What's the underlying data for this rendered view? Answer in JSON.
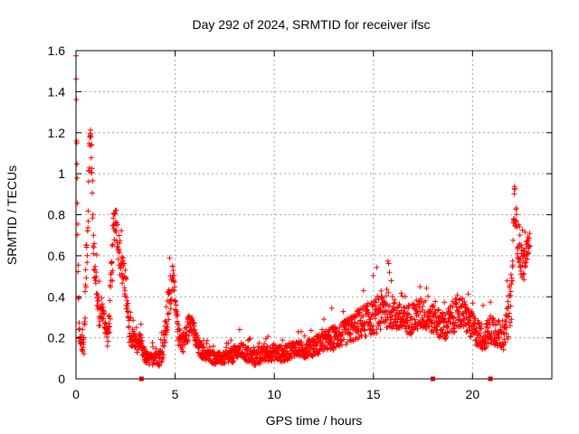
{
  "chart_data": {
    "type": "scatter",
    "title": "Day 292 of 2024, SRMTID for receiver ifsc",
    "xlabel": "GPS time / hours",
    "ylabel": "SRMTID / TECUs",
    "xlim": [
      0,
      24
    ],
    "ylim": [
      0,
      1.6
    ],
    "x_ticks": [
      0,
      5,
      10,
      15,
      20
    ],
    "x_tick_labels": [
      "0",
      "5",
      "10",
      "15",
      "20"
    ],
    "y_ticks": [
      0,
      0.2,
      0.4,
      0.6,
      0.8,
      1,
      1.2,
      1.4,
      1.6
    ],
    "y_tick_labels": [
      "0",
      "0.2",
      "0.4",
      "0.6",
      "0.8",
      "1",
      "1.2",
      "1.4",
      "1.6"
    ],
    "grid": true,
    "marker": "+",
    "series_color": "#ff0000",
    "gap_marker_color": "#cc0000",
    "data_gaps_hours": [
      3.3,
      18.0,
      20.9
    ],
    "series": [
      {
        "name": "SRMTID",
        "x": [
          0.0,
          0.05,
          0.1,
          0.15,
          0.2,
          0.3,
          0.4,
          0.5,
          0.6,
          0.7,
          0.75,
          0.8,
          0.9,
          1.0,
          1.1,
          1.2,
          1.3,
          1.4,
          1.5,
          1.6,
          1.7,
          1.8,
          1.9,
          2.0,
          2.1,
          2.2,
          2.3,
          2.4,
          2.5,
          2.6,
          2.7,
          2.8,
          2.9,
          3.0,
          3.1,
          3.2,
          3.4,
          3.6,
          3.8,
          4.0,
          4.2,
          4.4,
          4.6,
          4.8,
          4.9,
          5.0,
          5.2,
          5.4,
          5.6,
          5.8,
          6.0,
          6.2,
          6.5,
          7.0,
          7.5,
          8.0,
          8.3,
          8.6,
          9.0,
          9.5,
          10.0,
          10.5,
          11.0,
          11.5,
          12.0,
          12.5,
          13.0,
          13.5,
          14.0,
          14.5,
          15.0,
          15.3,
          15.6,
          16.0,
          16.5,
          17.0,
          17.5,
          17.8,
          18.2,
          18.6,
          19.0,
          19.4,
          19.8,
          20.0,
          20.3,
          20.6,
          21.0,
          21.3,
          21.6,
          21.8,
          22.0,
          22.1,
          22.2,
          22.4,
          22.6,
          22.8,
          22.9
        ],
        "y": [
          1.55,
          1.0,
          0.6,
          0.25,
          0.18,
          0.15,
          0.17,
          0.5,
          0.8,
          1.15,
          1.2,
          1.0,
          0.6,
          0.5,
          0.35,
          0.3,
          0.35,
          0.3,
          0.25,
          0.2,
          0.3,
          0.5,
          0.75,
          0.8,
          0.7,
          0.6,
          0.55,
          0.5,
          0.45,
          0.3,
          0.22,
          0.2,
          0.2,
          0.18,
          0.15,
          0.2,
          0.12,
          0.1,
          0.09,
          0.12,
          0.1,
          0.15,
          0.3,
          0.45,
          0.55,
          0.35,
          0.2,
          0.18,
          0.22,
          0.3,
          0.2,
          0.15,
          0.12,
          0.1,
          0.1,
          0.12,
          0.14,
          0.12,
          0.1,
          0.12,
          0.13,
          0.12,
          0.15,
          0.14,
          0.16,
          0.18,
          0.2,
          0.22,
          0.25,
          0.28,
          0.3,
          0.32,
          0.35,
          0.32,
          0.28,
          0.3,
          0.32,
          0.3,
          0.28,
          0.25,
          0.3,
          0.33,
          0.28,
          0.25,
          0.22,
          0.2,
          0.25,
          0.22,
          0.2,
          0.3,
          0.45,
          0.9,
          0.75,
          0.6,
          0.55,
          0.65,
          0.68
        ],
        "spread": [
          0.08,
          0.1,
          0.1,
          0.06,
          0.05,
          0.04,
          0.05,
          0.12,
          0.12,
          0.08,
          0.06,
          0.12,
          0.1,
          0.08,
          0.08,
          0.06,
          0.06,
          0.05,
          0.05,
          0.05,
          0.08,
          0.12,
          0.1,
          0.08,
          0.08,
          0.1,
          0.1,
          0.08,
          0.08,
          0.06,
          0.05,
          0.05,
          0.05,
          0.04,
          0.04,
          0.04,
          0.04,
          0.03,
          0.03,
          0.04,
          0.04,
          0.05,
          0.1,
          0.1,
          0.05,
          0.06,
          0.05,
          0.05,
          0.06,
          0.06,
          0.05,
          0.04,
          0.03,
          0.03,
          0.03,
          0.04,
          0.04,
          0.04,
          0.04,
          0.04,
          0.04,
          0.04,
          0.04,
          0.04,
          0.05,
          0.05,
          0.06,
          0.06,
          0.07,
          0.08,
          0.08,
          0.1,
          0.1,
          0.08,
          0.07,
          0.08,
          0.08,
          0.07,
          0.07,
          0.07,
          0.08,
          0.08,
          0.07,
          0.07,
          0.07,
          0.06,
          0.08,
          0.07,
          0.06,
          0.1,
          0.15,
          0.08,
          0.1,
          0.1,
          0.07,
          0.05,
          0.05
        ]
      }
    ]
  }
}
